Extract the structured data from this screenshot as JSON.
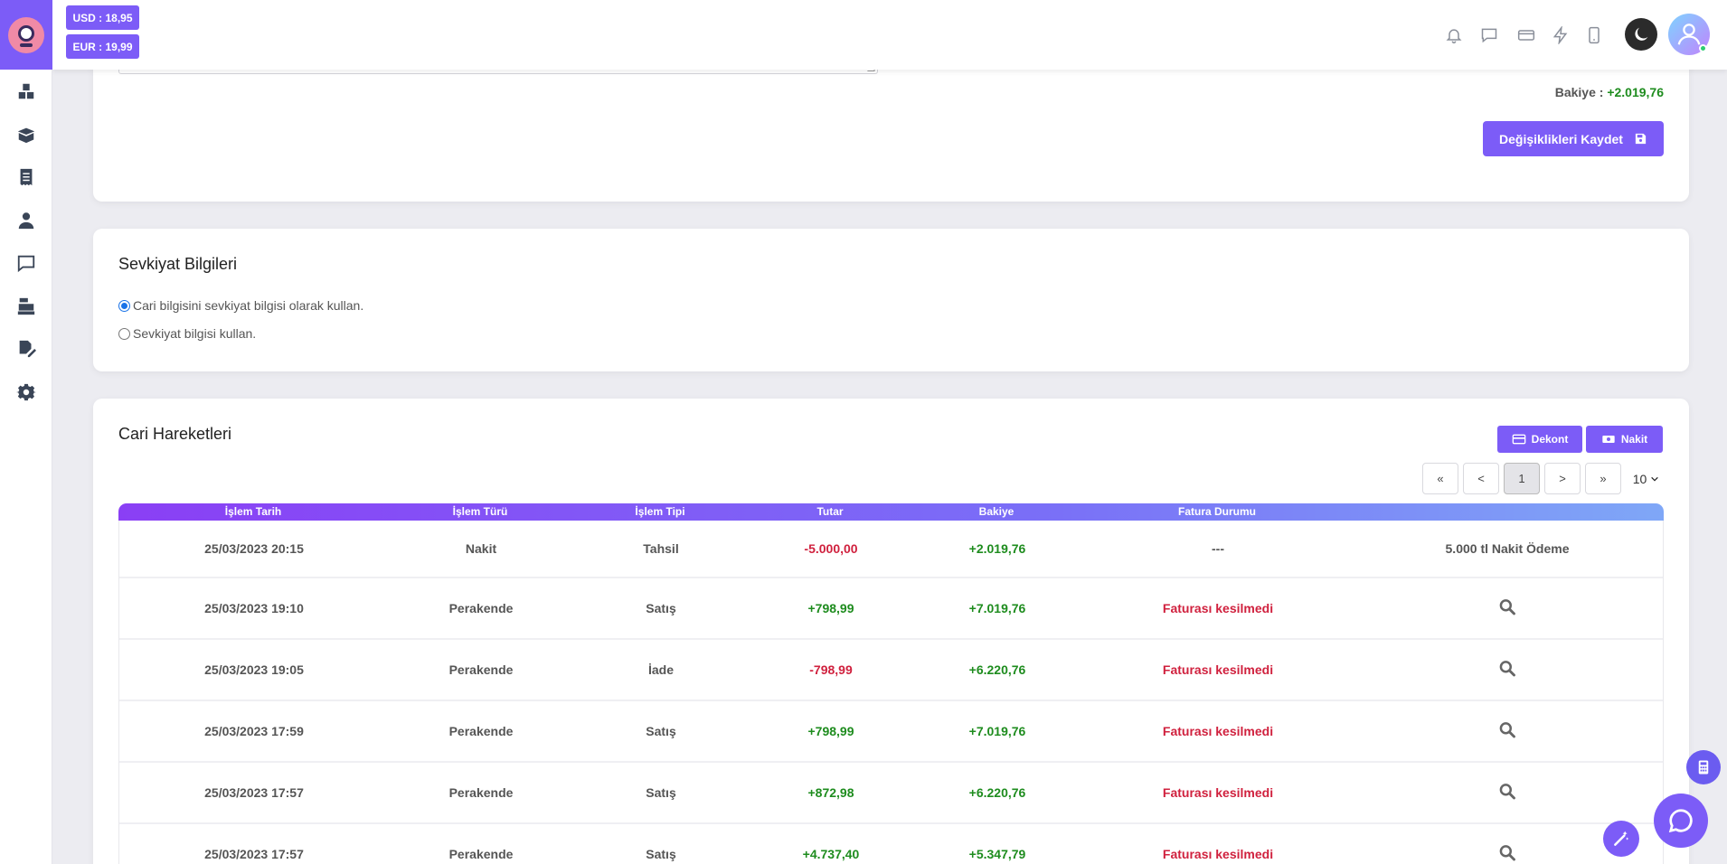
{
  "rates": {
    "usd": "USD : 18,95",
    "eur": "EUR : 19,99"
  },
  "sidebar_icons": [
    "boxes-icon",
    "open-box-icon",
    "receipt-icon",
    "user-tie-icon",
    "chat-icon",
    "cash-register-icon",
    "signature-icon",
    "gear-icon"
  ],
  "topbar_icons": [
    "bell-icon",
    "message-icon",
    "ticket-icon",
    "bolt-icon",
    "phone-icon",
    "moon-icon",
    "user-avatar-icon"
  ],
  "balance": {
    "label": "Bakiye : ",
    "value": "+2.019,76"
  },
  "save_button": "Değişiklikleri Kaydet",
  "shipping": {
    "title": "Sevkiyat Bilgileri",
    "option1": "Cari bilgisini sevkiyat bilgisi olarak kullan.",
    "option2": "Sevkiyat bilgisi kullan.",
    "selected": "option1"
  },
  "movements": {
    "title": "Cari Hareketleri",
    "dekont_button": "Dekont",
    "nakit_button": "Nakit",
    "pager": {
      "first": "«",
      "prev": "<",
      "current": "1",
      "next": ">",
      "last": "»",
      "page_size": "10"
    },
    "columns": [
      "İşlem Tarih",
      "İşlem Türü",
      "İşlem Tipi",
      "Tutar",
      "Bakiye",
      "Fatura Durumu"
    ],
    "rows": [
      {
        "date": "25/03/2023 20:15",
        "type": "Nakit",
        "kind": "Tahsil",
        "amount": "-5.000,00",
        "balance": "+2.019,76",
        "invoice": "---",
        "note": "5.000 tl Nakit Ödeme"
      },
      {
        "date": "25/03/2023 19:10",
        "type": "Perakende",
        "kind": "Satış",
        "amount": "+798,99",
        "balance": "+7.019,76",
        "invoice": "Faturası kesilmedi"
      },
      {
        "date": "25/03/2023 19:05",
        "type": "Perakende",
        "kind": "İade",
        "amount": "-798,99",
        "balance": "+6.220,76",
        "invoice": "Faturası kesilmedi"
      },
      {
        "date": "25/03/2023 17:59",
        "type": "Perakende",
        "kind": "Satış",
        "amount": "+798,99",
        "balance": "+7.019,76",
        "invoice": "Faturası kesilmedi"
      },
      {
        "date": "25/03/2023 17:57",
        "type": "Perakende",
        "kind": "Satış",
        "amount": "+872,98",
        "balance": "+6.220,76",
        "invoice": "Faturası kesilmedi"
      },
      {
        "date": "25/03/2023 17:57",
        "type": "Perakende",
        "kind": "Satış",
        "amount": "+4.737,40",
        "balance": "+5.347,79",
        "invoice": "Faturası kesilmedi"
      }
    ]
  }
}
